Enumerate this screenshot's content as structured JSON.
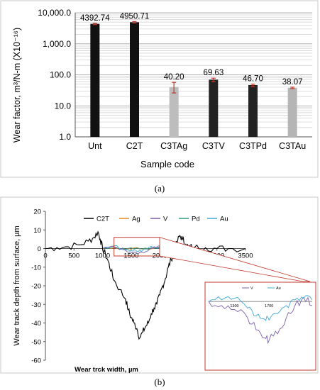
{
  "chart_data": [
    {
      "panel_label": "(a)",
      "type": "bar",
      "ylabel": "Wear factor, m³/N-m (X10⁻¹⁶)",
      "xlabel": "Sample code",
      "yscale": "log",
      "ylim": [
        1,
        10000
      ],
      "ytick_labels": [
        "1.0",
        "10.0",
        "100.0",
        "1,000.0",
        "10,000.0"
      ],
      "grid": true,
      "categories": [
        "Unt",
        "C2T",
        "C3TAg",
        "C3TV",
        "C3TPd",
        "C3TAu"
      ],
      "values": [
        4392.74,
        4950.71,
        40.2,
        69.63,
        46.7,
        38.07
      ],
      "value_labels": [
        "4392.74",
        "4950.71",
        "40.20",
        "69.63",
        "46.70",
        "38.07"
      ],
      "bar_colors": [
        "#111111",
        "#111111",
        "#bdbdbd",
        "#222222",
        "#222222",
        "#b5b5b5"
      ],
      "error_low": [
        4150,
        4700,
        26,
        60,
        42,
        36
      ],
      "error_high": [
        4600,
        5200,
        57,
        78,
        50,
        40
      ],
      "error_color": "#c0392b"
    },
    {
      "panel_label": "(b)",
      "type": "line",
      "ylabel": "Wear track depth from surface, µm",
      "xlabel": "Wear trck width, µm",
      "xlim": [
        0,
        3500
      ],
      "ylim": [
        -60,
        20
      ],
      "xtick_labels": [
        "0",
        "500",
        "1000",
        "1500",
        "2000",
        "2500",
        "3000",
        "3500"
      ],
      "ytick_labels": [
        "20",
        "10",
        "0",
        "-10",
        "-20",
        "-30",
        "-40",
        "-50",
        "-60"
      ],
      "legend": [
        "C2T",
        "Ag",
        "V",
        "Pd",
        "Au"
      ],
      "legend_placement": "top",
      "series": [
        {
          "name": "C2T",
          "color": "#000000",
          "x": [
            0,
            200,
            400,
            600,
            750,
            850,
            920,
            960,
            1000,
            1050,
            1100,
            1150,
            1200,
            1300,
            1400,
            1450,
            1500,
            1550,
            1600,
            1650,
            1700,
            1750,
            1800,
            1850,
            1900,
            1950,
            2000,
            2050,
            2100,
            2150,
            2200,
            2250,
            2300,
            2350,
            2400,
            2450,
            2500,
            2600,
            2800,
            3000,
            3200,
            3500
          ],
          "y": [
            0,
            0.5,
            1,
            2,
            4,
            6,
            9,
            5,
            0,
            -3,
            -7,
            -12,
            -17,
            -22,
            -27,
            -33,
            -37,
            -40,
            -43,
            -48,
            -45,
            -42,
            -40,
            -35,
            -32,
            -30,
            -25,
            -20,
            -16,
            -10,
            -6,
            -1,
            3,
            7,
            5,
            2,
            1,
            0.5,
            0.5,
            0,
            0,
            0
          ]
        },
        {
          "name": "Ag",
          "color": "#e6891f",
          "x": [
            1000,
            1200,
            1400,
            1600,
            1800,
            2000,
            2200
          ],
          "y": [
            0,
            0.5,
            -0.5,
            0.5,
            -0.5,
            0.5,
            0
          ]
        },
        {
          "name": "V",
          "color": "#7b5ea7",
          "x": [
            1000,
            1200,
            1400,
            1500,
            1600,
            1700,
            1800,
            1900,
            2000,
            2200
          ],
          "y": [
            0,
            1,
            -1,
            -2,
            -2.5,
            -2,
            -1,
            1,
            1.5,
            0
          ]
        },
        {
          "name": "Pd",
          "color": "#2e9c7e",
          "x": [
            1000,
            1200,
            1400,
            1600,
            1800,
            2000,
            2200
          ],
          "y": [
            0,
            0.3,
            -0.4,
            0.3,
            -0.3,
            0.4,
            0
          ]
        },
        {
          "name": "Au",
          "color": "#3fa9d8",
          "x": [
            1000,
            1200,
            1400,
            1500,
            1600,
            1700,
            1800,
            2000,
            2200
          ],
          "y": [
            0,
            1.5,
            -0.5,
            -1,
            -1.5,
            -1,
            0.5,
            1,
            0
          ]
        }
      ],
      "inset": {
        "legend": [
          "V",
          "Au"
        ],
        "xtick_labels": [
          "1300",
          "1700"
        ],
        "x": [
          1000,
          1150,
          1300,
          1450,
          1550,
          1650,
          1700,
          1800,
          1900,
          2000,
          2100,
          2200
        ],
        "V": [
          0,
          -0.5,
          -1,
          -2,
          -3.5,
          -4.5,
          -4.8,
          -4,
          -2,
          -0.5,
          0.5,
          -0.5
        ],
        "Au": [
          0,
          0.2,
          0.4,
          -0.8,
          -1.8,
          -2.2,
          -2.3,
          -1.5,
          -0.5,
          0.2,
          0.4,
          0.2
        ]
      }
    }
  ]
}
